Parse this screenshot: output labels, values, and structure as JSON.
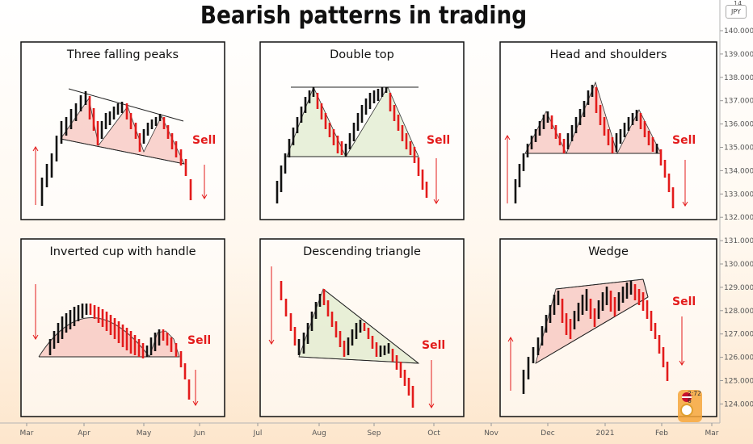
{
  "title": "Bearish patterns in trading",
  "currency": "JPY",
  "top_price_label": "14",
  "sell_label": "Sell",
  "colors": {
    "bull": "#111111",
    "bear": "#e31b1b",
    "fill_red": "#f5b8b0",
    "fill_green": "#d8e8c4"
  },
  "panels": [
    {
      "title": "Three falling peaks"
    },
    {
      "title": "Double top"
    },
    {
      "title": "Head and shoulders"
    },
    {
      "title": "Inverted cup with handle"
    },
    {
      "title": "Descending triangle"
    },
    {
      "title": "Wedge"
    }
  ],
  "price_axis": [
    "140.000",
    "139.000",
    "138.000",
    "137.000",
    "136.000",
    "135.000",
    "134.000",
    "133.000",
    "132.000",
    "131.000",
    "130.000",
    "129.000",
    "128.000",
    "127.000",
    "126.000",
    "125.000",
    "124.000"
  ],
  "time_axis": [
    "Mar",
    "Apr",
    "May",
    "Jun",
    "Jul",
    "Aug",
    "Sep",
    "Oct",
    "Nov",
    "Dec",
    "2021",
    "Feb",
    "Mar"
  ],
  "corner_badge": {
    "line1": "2:72",
    "line2": "6"
  }
}
